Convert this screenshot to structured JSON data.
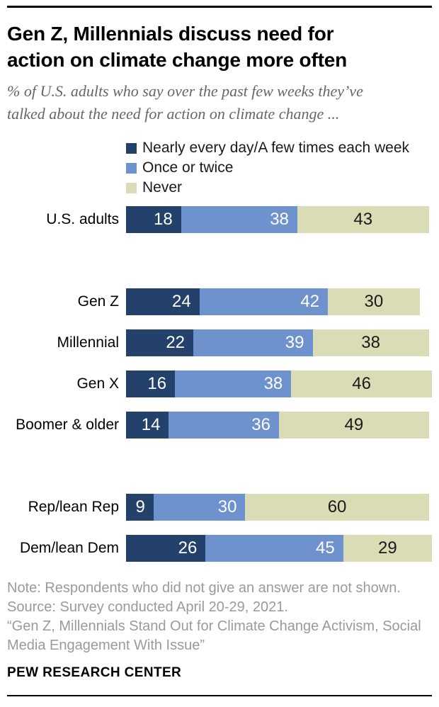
{
  "header": {
    "title_lines": [
      "Gen Z, Millennials discuss need for",
      "action on climate change more often"
    ],
    "subtitle_lines": [
      "% of U.S. adults who say over the past few weeks they’ve",
      "talked about the need for action on climate change ..."
    ]
  },
  "legend": {
    "items": [
      {
        "label": "Nearly every day/A few times each week",
        "color": "#24416b"
      },
      {
        "label": "Once or twice",
        "color": "#6d92cd"
      },
      {
        "label": "Never",
        "color": "#d9dcb5"
      }
    ]
  },
  "chart_data": {
    "type": "bar",
    "stacked": true,
    "orientation": "horizontal",
    "xlim": [
      0,
      100
    ],
    "grid": false,
    "legend_position": "top-left-above-bars",
    "series_names": [
      "Nearly every day/A few times each week",
      "Once or twice",
      "Never"
    ],
    "colors": [
      "#24416b",
      "#6d92cd",
      "#d9dcb5"
    ],
    "value_label_colors": [
      "#ffffff",
      "#ffffff",
      "#1a1a1a"
    ],
    "groups": [
      {
        "rows": [
          {
            "label": "U.S. adults",
            "values": [
              18,
              38,
              43
            ]
          }
        ]
      },
      {
        "rows": [
          {
            "label": "Gen Z",
            "values": [
              24,
              42,
              30
            ]
          },
          {
            "label": "Millennial",
            "values": [
              22,
              39,
              38
            ]
          },
          {
            "label": "Gen X",
            "values": [
              16,
              38,
              46
            ]
          },
          {
            "label": "Boomer & older",
            "values": [
              14,
              36,
              49
            ]
          }
        ]
      },
      {
        "rows": [
          {
            "label": "Rep/lean Rep",
            "values": [
              9,
              30,
              60
            ]
          },
          {
            "label": "Dem/lean Dem",
            "values": [
              26,
              45,
              29
            ]
          }
        ]
      }
    ]
  },
  "footer": {
    "note_lines": [
      "Note: Respondents who did not give an answer are not shown.",
      "Source: Survey conducted April 20-29, 2021.",
      "“Gen Z, Millennials Stand Out for Climate Change Activism, Social",
      "Media Engagement With Issue”"
    ],
    "brand": "PEW RESEARCH CENTER"
  }
}
